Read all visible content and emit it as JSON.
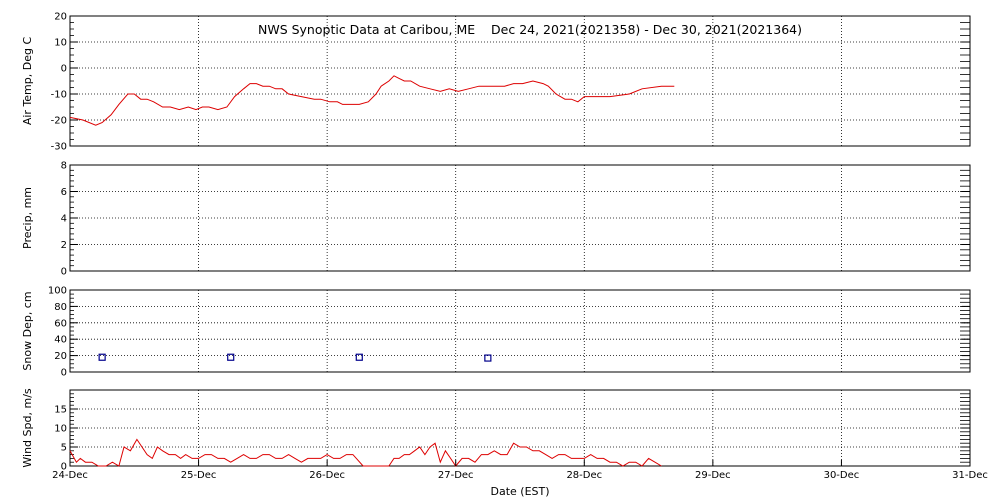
{
  "chart_data": {
    "type": "line",
    "title": "NWS Synoptic Data at Caribou, ME    Dec 24, 2021(2021358) - Dec 30, 2021(2021364)",
    "xlabel": "Date (EST)",
    "x_ticks": [
      "24-Dec",
      "25-Dec",
      "26-Dec",
      "27-Dec",
      "28-Dec",
      "29-Dec",
      "30-Dec",
      "31-Dec"
    ],
    "x_range_days": [
      0,
      7
    ],
    "grid": true,
    "line_color": "#dd0000",
    "marker_color": "#00008b",
    "panels": [
      {
        "id": "air-temp",
        "ylabel": "Air Temp, Deg C",
        "ylim": [
          -30,
          20
        ],
        "y_ticks": [
          "20",
          "10",
          "0",
          "-10",
          "-20",
          "-30"
        ],
        "style": "line",
        "series": [
          {
            "x": [
              0.0,
              0.1,
              0.2,
              0.25,
              0.32,
              0.38,
              0.45,
              0.5,
              0.55,
              0.6,
              0.65,
              0.72,
              0.78,
              0.85,
              0.92,
              0.98,
              1.03,
              1.08,
              1.15,
              1.22,
              1.28,
              1.35,
              1.4,
              1.45,
              1.5,
              1.55,
              1.6,
              1.65,
              1.7,
              1.8,
              1.9,
              1.95,
              2.02,
              2.08,
              2.12,
              2.18,
              2.25,
              2.32,
              2.38,
              2.42,
              2.48,
              2.52,
              2.56,
              2.6,
              2.65,
              2.72,
              2.8,
              2.88,
              2.95,
              3.02,
              3.1,
              3.18,
              3.28,
              3.38,
              3.45,
              3.52,
              3.6,
              3.68,
              3.72,
              3.78,
              3.85,
              3.9,
              3.95,
              4.0,
              4.05,
              4.1,
              4.2,
              4.35,
              4.45,
              4.6,
              4.65,
              4.7
            ],
            "y": [
              -19,
              -20,
              -22,
              -21,
              -18,
              -14,
              -10,
              -10,
              -12,
              -12,
              -13,
              -15,
              -15,
              -16,
              -15,
              -16,
              -15,
              -15,
              -16,
              -15,
              -11,
              -8,
              -6,
              -6,
              -7,
              -7,
              -8,
              -8,
              -10,
              -11,
              -12,
              -12,
              -13,
              -13,
              -14,
              -14,
              -14,
              -13,
              -10,
              -7,
              -5,
              -3,
              -4,
              -5,
              -5,
              -7,
              -8,
              -9,
              -8,
              -9,
              -8,
              -7,
              -7,
              -7,
              -6,
              -6,
              -5,
              -6,
              -7,
              -10,
              -12,
              -12,
              -13,
              -11,
              -11,
              -11,
              -11,
              -10,
              -8,
              -7,
              -7,
              -7
            ]
          }
        ]
      },
      {
        "id": "precip",
        "ylabel": "Precip, mm",
        "ylim": [
          0,
          8
        ],
        "y_ticks": [
          "8",
          "6",
          "4",
          "2",
          "0"
        ],
        "style": "line",
        "series": [
          {
            "x": [],
            "y": []
          }
        ]
      },
      {
        "id": "snow-depth",
        "ylabel": "Snow Dep, cm",
        "ylim": [
          0,
          100
        ],
        "y_ticks": [
          "100",
          "80",
          "60",
          "40",
          "20",
          "0"
        ],
        "style": "marker",
        "series": [
          {
            "x": [
              0.25,
              1.25,
              2.25,
              3.25
            ],
            "y": [
              18,
              18,
              18,
              17
            ]
          }
        ]
      },
      {
        "id": "wind-speed",
        "ylabel": "Wind Spd, m/s",
        "ylim": [
          0,
          20
        ],
        "y_ticks": [
          "15",
          "10",
          "5",
          "0"
        ],
        "style": "line",
        "series": [
          {
            "x": [
              0.0,
              0.05,
              0.08,
              0.12,
              0.17,
              0.22,
              0.28,
              0.33,
              0.38,
              0.42,
              0.47,
              0.52,
              0.56,
              0.6,
              0.64,
              0.68,
              0.72,
              0.77,
              0.82,
              0.86,
              0.9,
              0.95,
              1.0,
              1.05,
              1.1,
              1.15,
              1.2,
              1.25,
              1.3,
              1.35,
              1.4,
              1.45,
              1.5,
              1.55,
              1.6,
              1.65,
              1.7,
              1.75,
              1.8,
              1.85,
              1.9,
              1.95,
              2.0,
              2.05,
              2.1,
              2.15,
              2.2,
              2.28,
              2.36,
              2.42,
              2.48,
              2.52,
              2.56,
              2.6,
              2.64,
              2.68,
              2.72,
              2.76,
              2.8,
              2.84,
              2.88,
              2.92,
              2.96,
              3.0,
              3.05,
              3.1,
              3.15,
              3.2,
              3.25,
              3.3,
              3.35,
              3.4,
              3.45,
              3.5,
              3.55,
              3.6,
              3.65,
              3.7,
              3.75,
              3.8,
              3.85,
              3.9,
              3.95,
              4.0,
              4.05,
              4.1,
              4.15,
              4.2,
              4.25,
              4.3,
              4.35,
              4.4,
              4.45,
              4.5,
              4.55,
              4.6
            ],
            "y": [
              4,
              1,
              2,
              1,
              1,
              0,
              0,
              1,
              0,
              5,
              4,
              7,
              5,
              3,
              2,
              5,
              4,
              3,
              3,
              2,
              3,
              2,
              2,
              3,
              3,
              2,
              2,
              1,
              2,
              3,
              2,
              2,
              3,
              3,
              2,
              2,
              3,
              2,
              1,
              2,
              2,
              2,
              3,
              2,
              2,
              3,
              3,
              0,
              0,
              0,
              0,
              2,
              2,
              3,
              3,
              4,
              5,
              3,
              5,
              6,
              1,
              4,
              2,
              0,
              2,
              2,
              1,
              3,
              3,
              4,
              3,
              3,
              6,
              5,
              5,
              4,
              4,
              3,
              2,
              3,
              3,
              2,
              2,
              2,
              3,
              2,
              2,
              1,
              1,
              0,
              1,
              1,
              0,
              2,
              1,
              0
            ]
          }
        ]
      }
    ]
  }
}
